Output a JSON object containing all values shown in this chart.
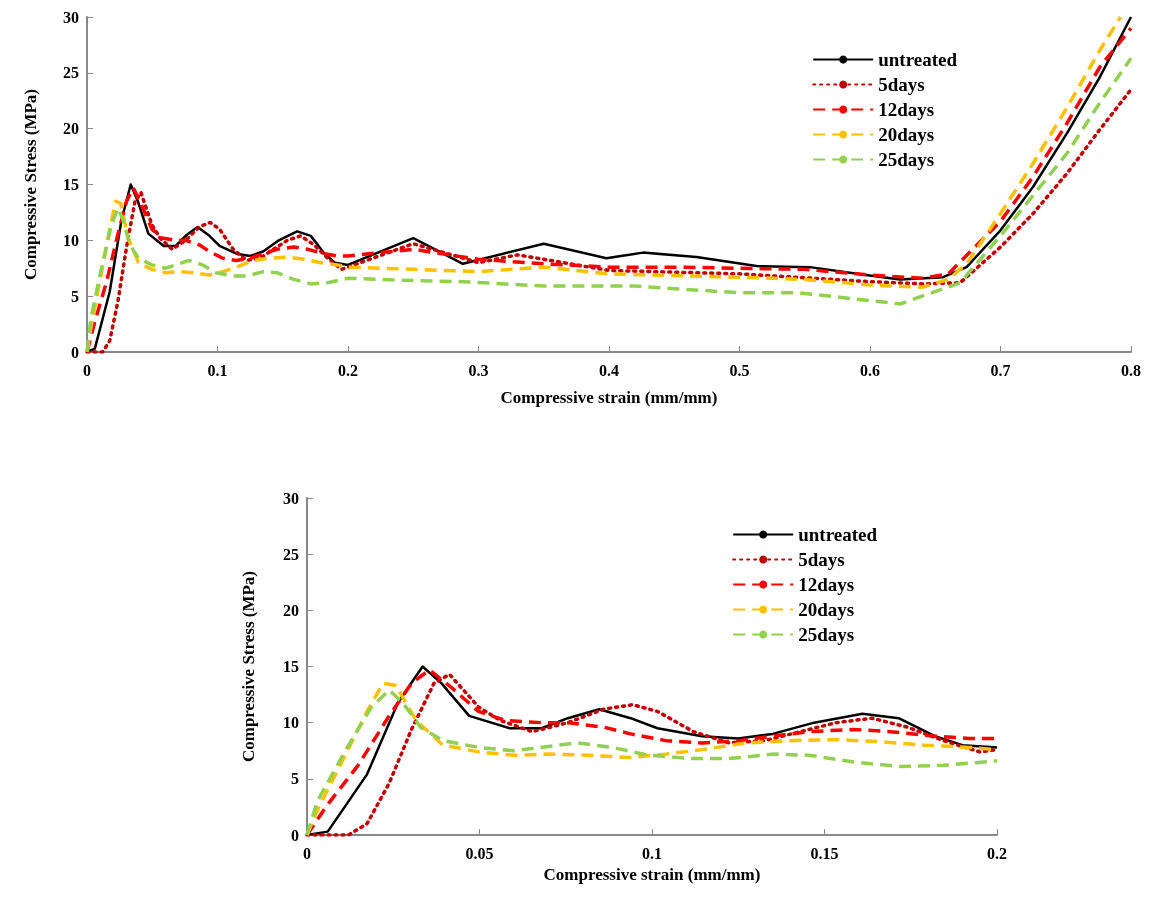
{
  "chart_data": [
    {
      "type": "line",
      "xlabel": "Compressive strain (mm/mm)",
      "ylabel": "Compressive Stress (MPa)",
      "xlim": [
        0,
        0.8
      ],
      "xticks": [
        0,
        0.1,
        0.2,
        0.3,
        0.4,
        0.5,
        0.6,
        0.7,
        0.8
      ],
      "ylim": [
        0,
        30
      ],
      "yticks": [
        0,
        5,
        10,
        15,
        20,
        25,
        30
      ],
      "legend": "top right",
      "grid": false,
      "marker": "none",
      "series": [
        {
          "name": "untreated",
          "color": "#000000",
          "line_style": "solid",
          "x": [
            0,
            0.006,
            0.0174,
            0.0264,
            0.0335,
            0.039,
            0.047,
            0.0588,
            0.068,
            0.0756,
            0.0847,
            0.0938,
            0.1016,
            0.1145,
            0.125,
            0.135,
            0.147,
            0.161,
            0.1715,
            0.182,
            0.19,
            0.2,
            0.25,
            0.288,
            0.35,
            0.398,
            0.426,
            0.467,
            0.513,
            0.554,
            0.597,
            0.623,
            0.656,
            0.674,
            0.7,
            0.725,
            0.751,
            0.776,
            0.8
          ],
          "values": [
            0,
            0.3,
            5.4,
            11.8,
            15,
            13.5,
            10.6,
            9.5,
            9.5,
            10.4,
            11.2,
            10.4,
            9.5,
            8.8,
            8.6,
            9.0,
            10.0,
            10.8,
            10.4,
            8.8,
            8.0,
            7.8,
            10.2,
            7.9,
            9.7,
            8.4,
            8.9,
            8.5,
            7.7,
            7.6,
            6.9,
            6.5,
            6.7,
            7.6,
            10.9,
            14.8,
            19.6,
            24.6,
            30
          ]
        },
        {
          "name": "5days",
          "color": "#c00000",
          "line_style": "dotted",
          "x": [
            0,
            0.012,
            0.0174,
            0.0238,
            0.0303,
            0.0368,
            0.0413,
            0.0497,
            0.056,
            0.0653,
            0.0756,
            0.086,
            0.0944,
            0.1016,
            0.112,
            0.1223,
            0.1326,
            0.143,
            0.1534,
            0.1637,
            0.174,
            0.1845,
            0.195,
            0.2,
            0.25,
            0.3,
            0.33,
            0.4,
            0.5,
            0.6,
            0.64,
            0.669,
            0.7,
            0.725,
            0.751,
            0.776,
            0.8
          ],
          "values": [
            0,
            0,
            1.0,
            4.6,
            9.4,
            13.5,
            14.3,
            11.4,
            10.2,
            9.2,
            10.0,
            11.2,
            11.6,
            11.0,
            9.2,
            8.2,
            8.4,
            9.2,
            10.0,
            10.4,
            9.6,
            8.4,
            7.4,
            7.6,
            9.7,
            8.0,
            8.7,
            7.3,
            7.0,
            6.3,
            6.1,
            6.2,
            9.4,
            12.4,
            16.0,
            19.9,
            23.5
          ]
        },
        {
          "name": "12days",
          "color": "#ff0000",
          "line_style": "dashed",
          "x": [
            0,
            0.0057,
            0.0148,
            0.0238,
            0.0303,
            0.0355,
            0.042,
            0.0497,
            0.0575,
            0.068,
            0.0756,
            0.086,
            0.0938,
            0.104,
            0.1145,
            0.125,
            0.135,
            0.1456,
            0.1585,
            0.169,
            0.182,
            0.192,
            0.2,
            0.25,
            0.3,
            0.35,
            0.4,
            0.45,
            0.5,
            0.55,
            0.6,
            0.64,
            0.66,
            0.7,
            0.725,
            0.751,
            0.776,
            0.8
          ],
          "values": [
            0,
            2.6,
            6.2,
            10.6,
            13.5,
            14.7,
            13.1,
            11.0,
            10.2,
            10.0,
            10.0,
            9.6,
            9.0,
            8.4,
            8.2,
            8.4,
            8.8,
            9.2,
            9.4,
            9.2,
            8.8,
            8.6,
            8.6,
            9.2,
            8.3,
            7.9,
            7.6,
            7.6,
            7.5,
            7.4,
            6.9,
            6.6,
            7.0,
            11.7,
            15.7,
            20.5,
            25.5,
            29
          ]
        },
        {
          "name": "20days",
          "color": "#ffc000",
          "line_style": "dashed",
          "x": [
            0,
            0.003,
            0.0109,
            0.0174,
            0.022,
            0.0258,
            0.0316,
            0.0394,
            0.0497,
            0.06,
            0.0705,
            0.081,
            0.0938,
            0.104,
            0.1145,
            0.1275,
            0.14,
            0.1534,
            0.1663,
            0.179,
            0.192,
            0.2,
            0.25,
            0.3,
            0.35,
            0.4,
            0.5,
            0.55,
            0.6,
            0.64,
            0.66,
            0.674,
            0.7,
            0.725,
            0.751,
            0.776,
            0.792
          ],
          "values": [
            0,
            2.2,
            7.0,
            11.0,
            13.5,
            13.3,
            10.2,
            8.0,
            7.4,
            7.1,
            7.2,
            7.1,
            6.9,
            7.2,
            7.6,
            8.2,
            8.4,
            8.5,
            8.3,
            8.0,
            7.8,
            7.6,
            7.4,
            7.2,
            7.6,
            7.0,
            6.7,
            6.5,
            6.0,
            5.8,
            6.5,
            7.9,
            12.4,
            16.9,
            21.9,
            27,
            30
          ]
        },
        {
          "name": "25days",
          "color": "#92d050",
          "line_style": "dashed",
          "x": [
            0,
            0.003,
            0.0109,
            0.0187,
            0.0238,
            0.0277,
            0.0329,
            0.0394,
            0.0497,
            0.06,
            0.0705,
            0.0782,
            0.0886,
            0.0989,
            0.112,
            0.1223,
            0.135,
            0.1456,
            0.1585,
            0.1715,
            0.1845,
            0.2,
            0.25,
            0.288,
            0.35,
            0.42,
            0.5,
            0.546,
            0.6,
            0.623,
            0.669,
            0.7,
            0.751,
            0.776,
            0.8
          ],
          "values": [
            0,
            3.0,
            7.4,
            11.4,
            12.9,
            11.8,
            9.6,
            8.4,
            7.8,
            7.5,
            7.9,
            8.2,
            7.8,
            7.1,
            6.8,
            6.8,
            7.2,
            7.1,
            6.5,
            6.1,
            6.2,
            6.6,
            6.4,
            6.3,
            5.9,
            5.9,
            5.3,
            5.3,
            4.6,
            4.3,
            6.2,
            10.4,
            17.8,
            22.3,
            26.3
          ]
        }
      ]
    },
    {
      "type": "line",
      "xlabel": "Compressive strain (mm/mm)",
      "ylabel": "Compressive Stress (MPa)",
      "xlim": [
        0,
        0.2
      ],
      "xticks": [
        0,
        0.05,
        0.1,
        0.15,
        0.2
      ],
      "ylim": [
        0,
        30
      ],
      "yticks": [
        0,
        5,
        10,
        15,
        20,
        25,
        30
      ],
      "legend": "top right",
      "grid": false,
      "marker": "none",
      "series": [
        {
          "name": "untreated",
          "color": "#000000",
          "line_style": "solid",
          "x": [
            0,
            0.006,
            0.0174,
            0.0264,
            0.0335,
            0.039,
            0.047,
            0.0588,
            0.068,
            0.0756,
            0.0847,
            0.0938,
            0.1016,
            0.1145,
            0.125,
            0.135,
            0.147,
            0.161,
            0.1715,
            0.182,
            0.19,
            0.2
          ],
          "values": [
            0,
            0.3,
            5.4,
            11.8,
            15,
            13.5,
            10.6,
            9.5,
            9.5,
            10.4,
            11.2,
            10.4,
            9.5,
            8.8,
            8.6,
            9.0,
            10.0,
            10.8,
            10.4,
            8.8,
            8.0,
            7.8
          ]
        },
        {
          "name": "5days",
          "color": "#c00000",
          "line_style": "dotted",
          "x": [
            0,
            0.012,
            0.0174,
            0.0238,
            0.0303,
            0.0368,
            0.0413,
            0.0497,
            0.056,
            0.0653,
            0.0756,
            0.086,
            0.0944,
            0.1016,
            0.112,
            0.1223,
            0.1326,
            0.143,
            0.1534,
            0.1637,
            0.174,
            0.1845,
            0.195,
            0.2
          ],
          "values": [
            0,
            0,
            1.0,
            4.6,
            9.4,
            13.5,
            14.3,
            11.4,
            10.2,
            9.2,
            10.0,
            11.2,
            11.6,
            11.0,
            9.2,
            8.2,
            8.4,
            9.2,
            10.0,
            10.4,
            9.6,
            8.4,
            7.4,
            7.6
          ]
        },
        {
          "name": "12days",
          "color": "#ff0000",
          "line_style": "dashed",
          "x": [
            0,
            0.0057,
            0.0148,
            0.0238,
            0.0303,
            0.0355,
            0.042,
            0.0497,
            0.0575,
            0.068,
            0.0756,
            0.086,
            0.0938,
            0.104,
            0.1145,
            0.125,
            0.135,
            0.1456,
            0.1585,
            0.169,
            0.182,
            0.192,
            0.2
          ],
          "values": [
            0,
            2.6,
            6.2,
            10.6,
            13.5,
            14.7,
            13.1,
            11.0,
            10.2,
            10.0,
            10.0,
            9.6,
            9.0,
            8.4,
            8.2,
            8.4,
            8.8,
            9.2,
            9.4,
            9.2,
            8.8,
            8.6,
            8.6
          ]
        },
        {
          "name": "20days",
          "color": "#ffc000",
          "line_style": "dashed",
          "x": [
            0,
            0.003,
            0.0109,
            0.0174,
            0.022,
            0.0258,
            0.0316,
            0.0394,
            0.0497,
            0.06,
            0.0705,
            0.081,
            0.0938,
            0.104,
            0.1145,
            0.1275,
            0.14,
            0.1534,
            0.1663,
            0.179,
            0.192,
            0.2
          ],
          "values": [
            0,
            2.2,
            7.0,
            11.0,
            13.5,
            13.3,
            10.2,
            8.0,
            7.4,
            7.1,
            7.2,
            7.1,
            6.9,
            7.2,
            7.6,
            8.2,
            8.4,
            8.5,
            8.3,
            8.0,
            7.8,
            7.6
          ]
        },
        {
          "name": "25days",
          "color": "#92d050",
          "line_style": "dashed",
          "x": [
            0,
            0.003,
            0.0109,
            0.0187,
            0.0238,
            0.0277,
            0.0329,
            0.0394,
            0.0497,
            0.06,
            0.0705,
            0.0782,
            0.0886,
            0.0989,
            0.112,
            0.1223,
            0.135,
            0.1456,
            0.1585,
            0.1715,
            0.1845,
            0.2
          ],
          "values": [
            0,
            3.0,
            7.4,
            11.4,
            12.9,
            11.8,
            9.6,
            8.4,
            7.8,
            7.5,
            7.9,
            8.2,
            7.8,
            7.1,
            6.8,
            6.8,
            7.2,
            7.1,
            6.5,
            6.1,
            6.2,
            6.6
          ]
        }
      ]
    }
  ]
}
